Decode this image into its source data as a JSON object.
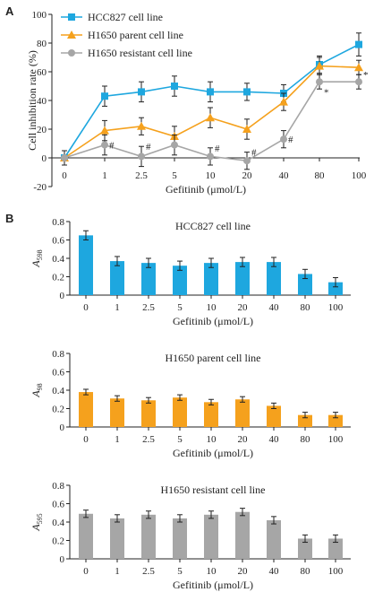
{
  "panel_labels": {
    "a": "A",
    "b": "B"
  },
  "colors": {
    "blue": "#1ea7df",
    "orange": "#f5a11d",
    "gray": "#a6a6a6",
    "axis": "#222222",
    "err": "#222222"
  },
  "chart_data": [
    {
      "type": "line",
      "panel": "A",
      "xlabel": "Gefitinib (μmol/L)",
      "ylabel": "Cell inhibition rate (%)",
      "ylim": [
        -20,
        100
      ],
      "yticks": [
        "-20",
        "0",
        "20",
        "40",
        "60",
        "80",
        "100"
      ],
      "categories": [
        "0",
        "1",
        "2.5",
        "5",
        "10",
        "20",
        "40",
        "80",
        "100"
      ],
      "legend_position": "top-left",
      "series": [
        {
          "name": "HCC827 cell line",
          "color": "#1ea7df",
          "marker": "square",
          "values": [
            0,
            43,
            46,
            50,
            46,
            46,
            45,
            65,
            79
          ],
          "errors": [
            5,
            7,
            7,
            7,
            7,
            6,
            6,
            6,
            8
          ]
        },
        {
          "name": "H1650 parent cell line",
          "color": "#f5a11d",
          "marker": "triangle",
          "values": [
            0,
            19,
            22,
            15,
            28,
            20,
            39,
            64,
            63
          ],
          "errors": [
            5,
            7,
            6,
            7,
            7,
            7,
            6,
            6,
            5
          ]
        },
        {
          "name": "H1650 resistant cell line",
          "color": "#a6a6a6",
          "marker": "circle",
          "values": [
            0,
            9,
            1,
            9,
            1,
            -2,
            13,
            53,
            53
          ],
          "errors": [
            5,
            7,
            7,
            7,
            6,
            6,
            6,
            5,
            5
          ]
        }
      ],
      "annotations": [
        {
          "text": "#",
          "x": "1",
          "y": 9
        },
        {
          "text": "#",
          "x": "2.5",
          "y": 8
        },
        {
          "text": "#",
          "x": "10",
          "y": 7
        },
        {
          "text": "#",
          "x": "20",
          "y": 4
        },
        {
          "text": "#",
          "x": "40",
          "y": 13
        },
        {
          "text": "*",
          "x": "80",
          "y": 46
        },
        {
          "text": "*",
          "x": "100",
          "y": 58
        }
      ]
    },
    {
      "type": "bar",
      "panel": "B",
      "title": "HCC827 cell line",
      "ylabel_main": "A",
      "ylabel_sub": "598",
      "xlabel": "Gefitinib (μmol/L)",
      "ylim": [
        0,
        0.8
      ],
      "yticks": [
        "0",
        "0.2",
        "0.4",
        "0.6",
        "0.8"
      ],
      "color": "#1ea7df",
      "categories": [
        "0",
        "1",
        "2.5",
        "5",
        "10",
        "20",
        "40",
        "80",
        "100"
      ],
      "values": [
        0.65,
        0.37,
        0.35,
        0.32,
        0.35,
        0.36,
        0.36,
        0.23,
        0.14
      ],
      "errors": [
        0.05,
        0.05,
        0.05,
        0.05,
        0.05,
        0.05,
        0.05,
        0.05,
        0.05
      ]
    },
    {
      "type": "bar",
      "panel": "B",
      "title": "H1650 parent cell line",
      "ylabel_main": "A",
      "ylabel_sub": "98",
      "xlabel": "Gefitinib (μmol/L)",
      "ylim": [
        0,
        0.8
      ],
      "yticks": [
        "0",
        "0.2",
        "0.4",
        "0.6",
        "0.8"
      ],
      "color": "#f5a11d",
      "categories": [
        "0",
        "1",
        "2.5",
        "5",
        "10",
        "20",
        "40",
        "80",
        "100"
      ],
      "values": [
        0.38,
        0.31,
        0.29,
        0.32,
        0.27,
        0.3,
        0.23,
        0.13,
        0.13
      ],
      "errors": [
        0.03,
        0.03,
        0.03,
        0.03,
        0.03,
        0.03,
        0.03,
        0.03,
        0.03
      ]
    },
    {
      "type": "bar",
      "panel": "B",
      "title": "H1650 resistant cell line",
      "ylabel_main": "A",
      "ylabel_sub": "595",
      "xlabel": "Gefitinib (μmol/L)",
      "ylim": [
        0,
        0.8
      ],
      "yticks": [
        "0",
        "0.2",
        "0.4",
        "0.6",
        "0.8"
      ],
      "color": "#a6a6a6",
      "categories": [
        "0",
        "1",
        "2.5",
        "5",
        "10",
        "20",
        "40",
        "80",
        "100"
      ],
      "values": [
        0.49,
        0.44,
        0.48,
        0.44,
        0.48,
        0.51,
        0.42,
        0.22,
        0.22
      ],
      "errors": [
        0.04,
        0.04,
        0.04,
        0.04,
        0.04,
        0.04,
        0.04,
        0.04,
        0.04
      ]
    }
  ]
}
